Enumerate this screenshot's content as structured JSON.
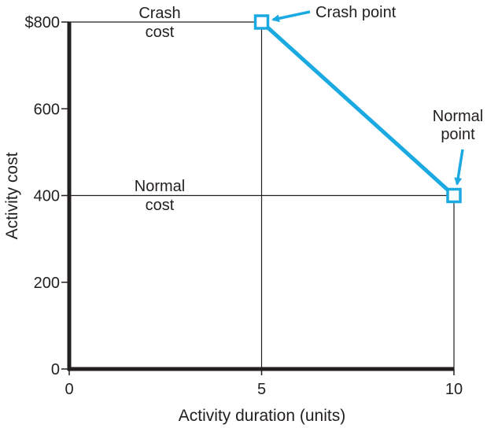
{
  "chart_data": {
    "type": "line",
    "xlabel": "Activity duration (units)",
    "ylabel": "Activity cost",
    "xlim": [
      0,
      10
    ],
    "ylim": [
      0,
      800
    ],
    "x_ticks": [
      0,
      5,
      10
    ],
    "x_tick_labels": [
      "0",
      "5",
      "10"
    ],
    "y_ticks": [
      0,
      200,
      400,
      600,
      800
    ],
    "y_tick_labels": [
      "0",
      "200",
      "400",
      "600",
      "$800"
    ],
    "series": [
      {
        "points": [
          {
            "x": 5,
            "y": 800
          },
          {
            "x": 10,
            "y": 400
          }
        ]
      }
    ],
    "reference_lines": {
      "horizontal_y": [
        400,
        800
      ],
      "vertical_x": [
        5,
        10
      ]
    },
    "annotations": {
      "crash_point": "Crash point",
      "normal_point": [
        "Normal",
        "point"
      ],
      "crash_cost": [
        "Crash",
        "cost"
      ],
      "normal_cost": [
        "Normal",
        "cost"
      ]
    },
    "colors": {
      "line": "#1ba9e1",
      "axis": "#231f20",
      "text": "#231f20"
    },
    "grid": false
  }
}
